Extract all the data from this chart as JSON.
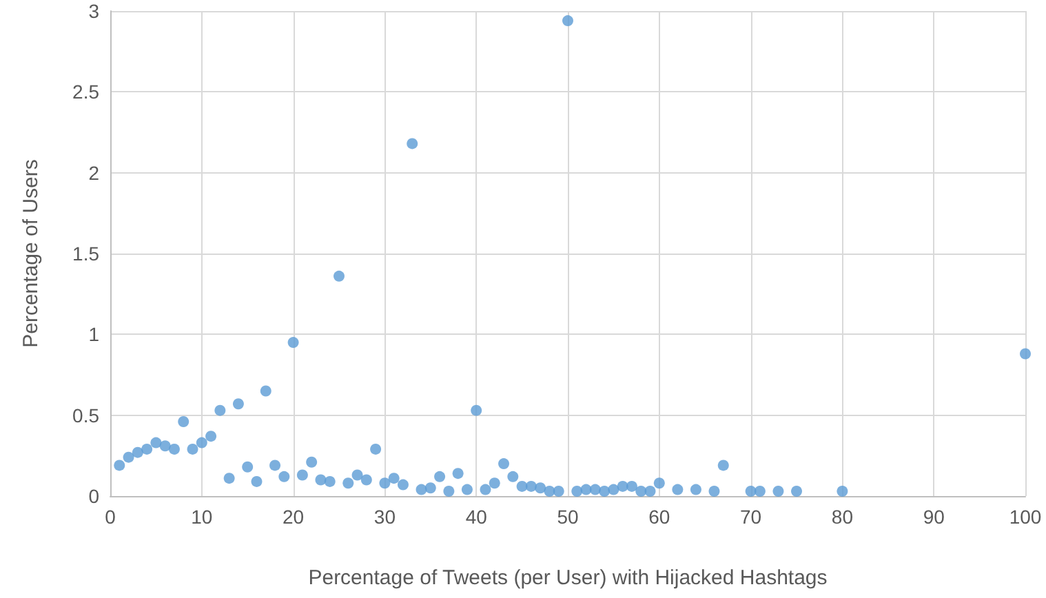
{
  "chart_data": {
    "type": "scatter",
    "xlabel": "Percentage of Tweets (per User) with Hijacked Hashtags",
    "ylabel": "Percentage of Users",
    "x": [
      1,
      2,
      3,
      4,
      5,
      6,
      7,
      8,
      9,
      10,
      11,
      12,
      13,
      14,
      15,
      16,
      17,
      18,
      19,
      20,
      21,
      22,
      23,
      24,
      25,
      26,
      27,
      28,
      29,
      30,
      31,
      32,
      33,
      34,
      35,
      36,
      37,
      38,
      39,
      40,
      41,
      42,
      43,
      44,
      45,
      46,
      47,
      48,
      49,
      50,
      51,
      52,
      53,
      54,
      55,
      56,
      57,
      58,
      59,
      60,
      62,
      64,
      66,
      67,
      70,
      71,
      73,
      75,
      80,
      100
    ],
    "series": [
      {
        "color": "#5b9bd5",
        "values": [
          0.19,
          0.24,
          0.27,
          0.29,
          0.33,
          0.31,
          0.29,
          0.46,
          0.29,
          0.33,
          0.37,
          0.53,
          0.11,
          0.57,
          0.18,
          0.09,
          0.65,
          0.19,
          0.12,
          0.95,
          0.13,
          0.21,
          0.1,
          0.09,
          1.36,
          0.08,
          0.13,
          0.1,
          0.29,
          0.08,
          0.11,
          0.07,
          2.18,
          0.04,
          0.05,
          0.12,
          0.03,
          0.14,
          0.04,
          0.53,
          0.04,
          0.08,
          0.2,
          0.12,
          0.06,
          0.06,
          0.05,
          0.03,
          0.03,
          2.94,
          0.03,
          0.04,
          0.04,
          0.03,
          0.04,
          0.06,
          0.06,
          0.03,
          0.03,
          0.08,
          0.04,
          0.04,
          0.03,
          0.19,
          0.03,
          0.03,
          0.03,
          0.03,
          0.03,
          0.88
        ]
      }
    ],
    "xlim": [
      0,
      100
    ],
    "xticks": [
      0,
      10,
      20,
      30,
      40,
      50,
      60,
      70,
      80,
      90,
      100
    ],
    "ylim": [
      0,
      3
    ],
    "yticks": [
      0,
      0.5,
      1,
      1.5,
      2,
      2.5,
      3
    ],
    "grid": true,
    "marker": "circle"
  }
}
